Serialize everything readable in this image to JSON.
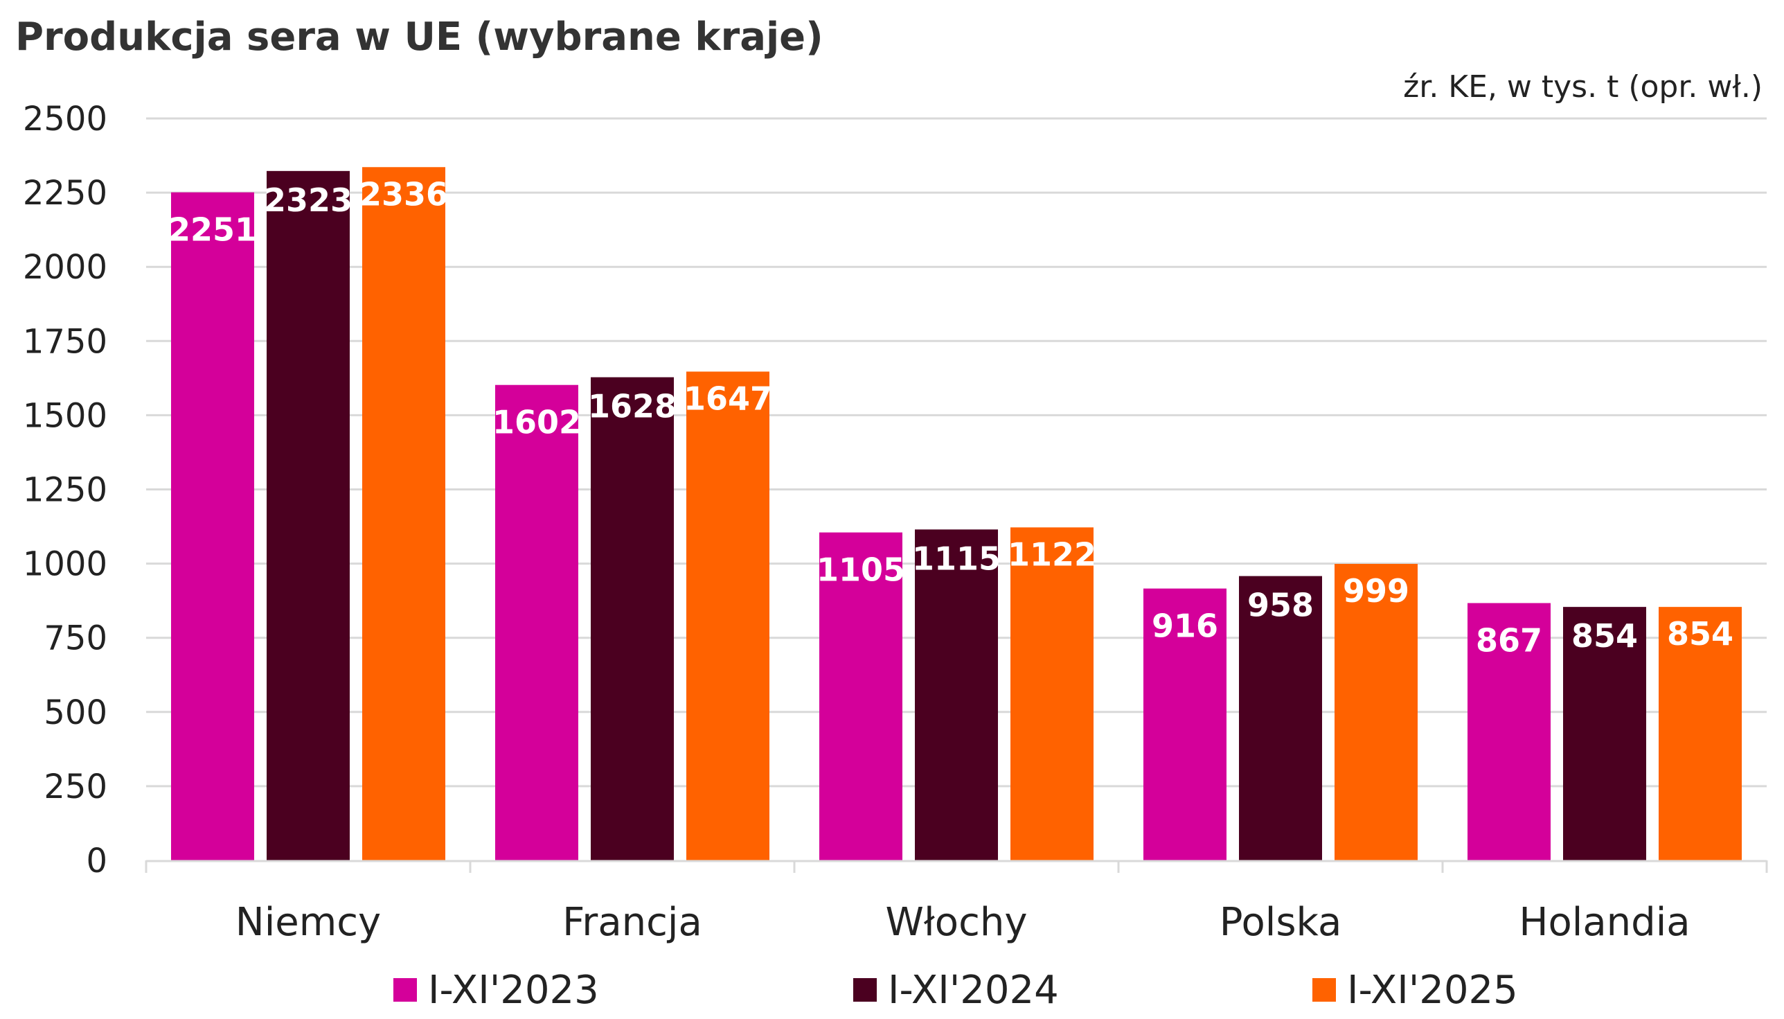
{
  "chart_data": {
    "type": "bar",
    "title": "Produkcja sera w UE (wybrane kraje)",
    "subtitle": "źr. KE, w tys. t (opr. wł.)",
    "xlabel": "",
    "ylabel": "",
    "ylim": [
      0,
      2500
    ],
    "yticks": [
      0,
      250,
      500,
      750,
      1000,
      1250,
      1500,
      1750,
      2000,
      2250,
      2500
    ],
    "grid": true,
    "legend_position": "bottom",
    "categories": [
      "Niemcy",
      "Francja",
      "Włochy",
      "Polska",
      "Holandia"
    ],
    "series": [
      {
        "name": "I-XI'2023",
        "color": "#D4009A",
        "values": [
          2251,
          1602,
          1105,
          916,
          867
        ]
      },
      {
        "name": "I-XI'2024",
        "color": "#4B0020",
        "values": [
          2323,
          1628,
          1115,
          958,
          854
        ]
      },
      {
        "name": "I-XI'2025",
        "color": "#FF6200",
        "values": [
          2336,
          1647,
          1122,
          999,
          854
        ]
      }
    ]
  }
}
